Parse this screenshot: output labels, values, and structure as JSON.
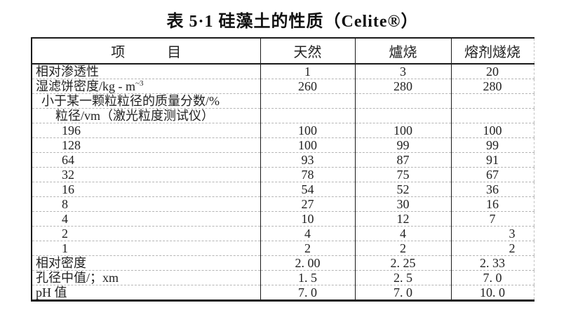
{
  "page": {
    "title": "表 5·1 硅藻土的性质（Celite®）"
  },
  "table": {
    "headers": {
      "item": "项　　　目",
      "natural": "天然",
      "calcined": "爐烧",
      "flux_calcined": "熔剂燧烧"
    },
    "rows": [
      {
        "label": "相对渗透性",
        "values": [
          "1",
          "3",
          "20"
        ]
      },
      {
        "label": "湿滤饼密度/kg - m",
        "label_sup": "~3",
        "values": [
          "260",
          "280",
          "280"
        ]
      },
      {
        "label": "小于某一颗粒粒径的质量分数/%",
        "values": [
          "",
          "",
          ""
        ]
      },
      {
        "label": "粒径/vm（激光粒度测试仪）",
        "values": [
          "",
          "",
          ""
        ]
      },
      {
        "label": "196",
        "values": [
          "100",
          "100",
          "100"
        ]
      },
      {
        "label": "128",
        "values": [
          "100",
          "99",
          "99"
        ]
      },
      {
        "label": "64",
        "values": [
          "93",
          "87",
          "91"
        ]
      },
      {
        "label": "32",
        "values": [
          "78",
          "75",
          "67"
        ]
      },
      {
        "label": "16",
        "values": [
          "54",
          "52",
          "36"
        ]
      },
      {
        "label": "8",
        "values": [
          "27",
          "30",
          "16"
        ]
      },
      {
        "label": "4",
        "values": [
          "10",
          "12",
          "7"
        ]
      },
      {
        "label": "2",
        "values": [
          "4",
          "4",
          "3"
        ]
      },
      {
        "label": "1",
        "values": [
          "2",
          "2",
          "2"
        ]
      },
      {
        "label": "相对密度",
        "values": [
          "2. 00",
          "2. 25",
          "2. 33"
        ]
      },
      {
        "label": "孔径中值/；xm",
        "values": [
          "1. 5",
          "2. 5",
          "7. 0"
        ]
      },
      {
        "label": "pH 值",
        "values": [
          "7. 0",
          "7. 0",
          "10. 0"
        ]
      }
    ]
  }
}
